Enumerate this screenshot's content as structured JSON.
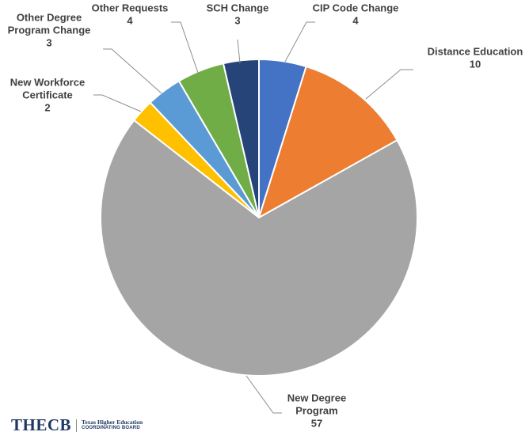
{
  "chart_data": {
    "type": "pie",
    "title": "",
    "slices": [
      {
        "label_lines": [
          "CIP Code Change",
          "4"
        ],
        "name": "CIP Code Change",
        "value": 4,
        "color": "#4472C4"
      },
      {
        "label_lines": [
          "Distance Education",
          "10"
        ],
        "name": "Distance Education",
        "value": 10,
        "color": "#ED7D31"
      },
      {
        "label_lines": [
          "New Degree",
          "Program",
          "57"
        ],
        "name": "New Degree Program",
        "value": 57,
        "color": "#A5A5A5"
      },
      {
        "label_lines": [
          "New Workforce",
          "Certificate",
          "2"
        ],
        "name": "New Workforce Certificate",
        "value": 2,
        "color": "#FFC000"
      },
      {
        "label_lines": [
          "Other Degree",
          "Program Change",
          "3"
        ],
        "name": "Other Degree Program Change",
        "value": 3,
        "color": "#5B9BD5"
      },
      {
        "label_lines": [
          "Other Requests",
          "4"
        ],
        "name": "Other Requests",
        "value": 4,
        "color": "#70AD47"
      },
      {
        "label_lines": [
          "SCH Change",
          "3"
        ],
        "name": "SCH Change",
        "value": 3,
        "color": "#264478"
      }
    ]
  },
  "logo": {
    "mark": "THECB",
    "line1": "Texas Higher Education",
    "line2": "COORDINATING BOARD"
  }
}
